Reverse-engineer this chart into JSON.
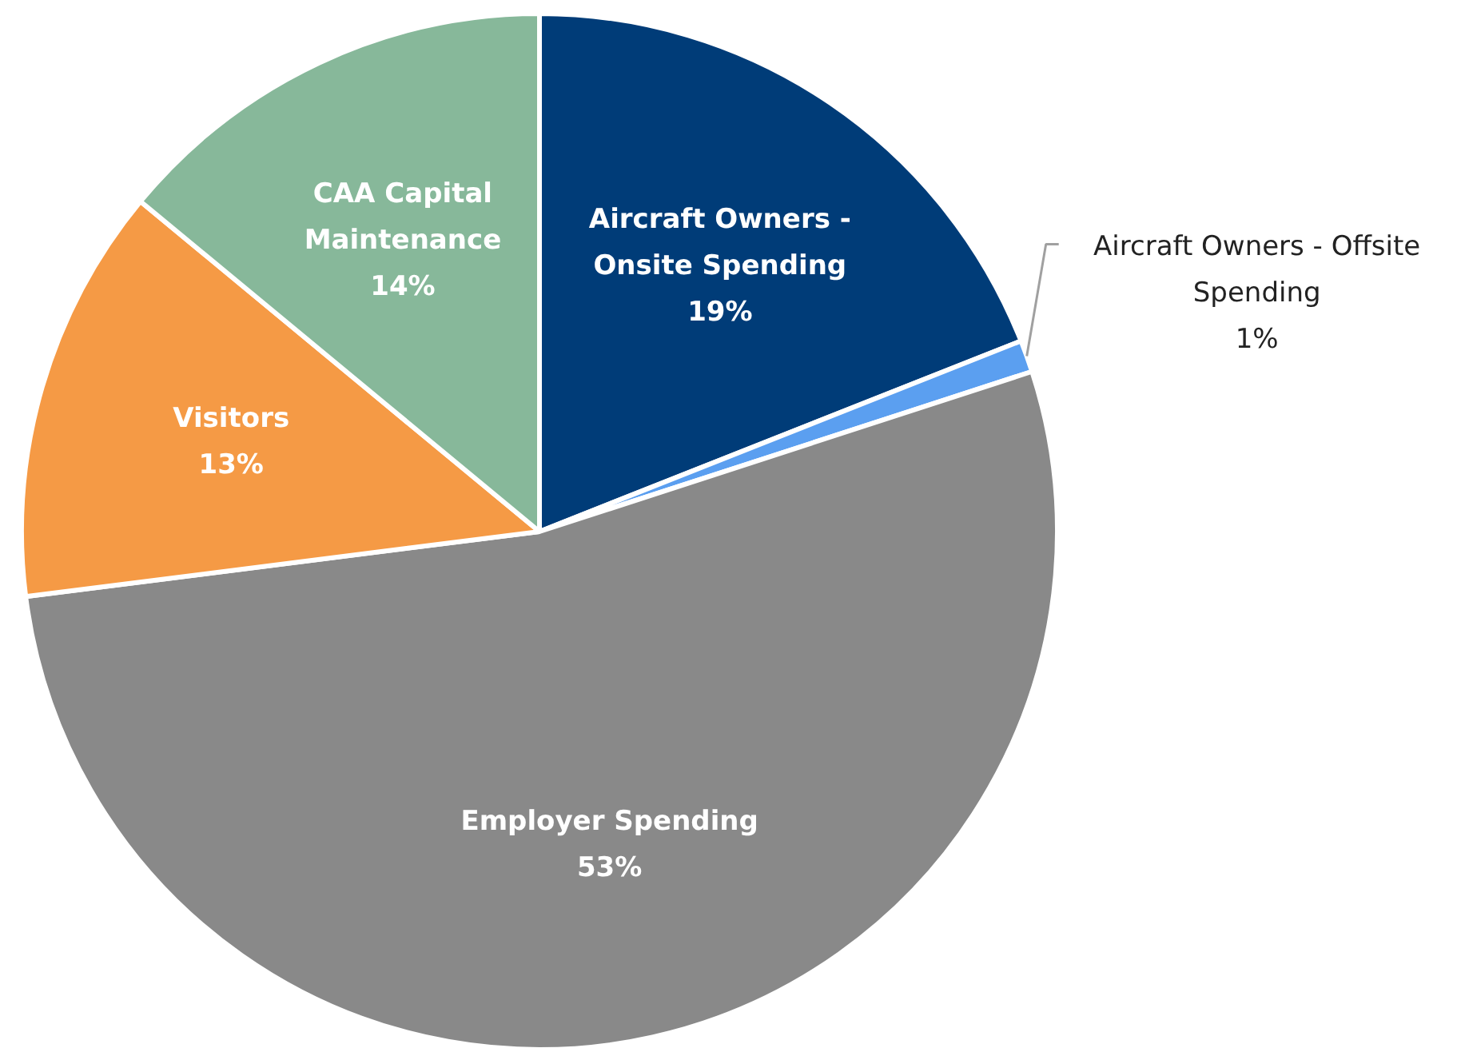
{
  "chart_data": {
    "type": "pie",
    "categories": [
      "Aircraft Owners - Onsite Spending",
      "Aircraft Owners - Offsite Spending",
      "Employer Spending",
      "Visitors",
      "CAA Capital Maintenance"
    ],
    "values": [
      19,
      1,
      53,
      13,
      14
    ],
    "colors": [
      "#003c78",
      "#5b9ff0",
      "#898989",
      "#f59a45",
      "#87b89a"
    ],
    "value_labels": [
      "19%",
      "1%",
      "53%",
      "13%",
      "14%"
    ]
  }
}
